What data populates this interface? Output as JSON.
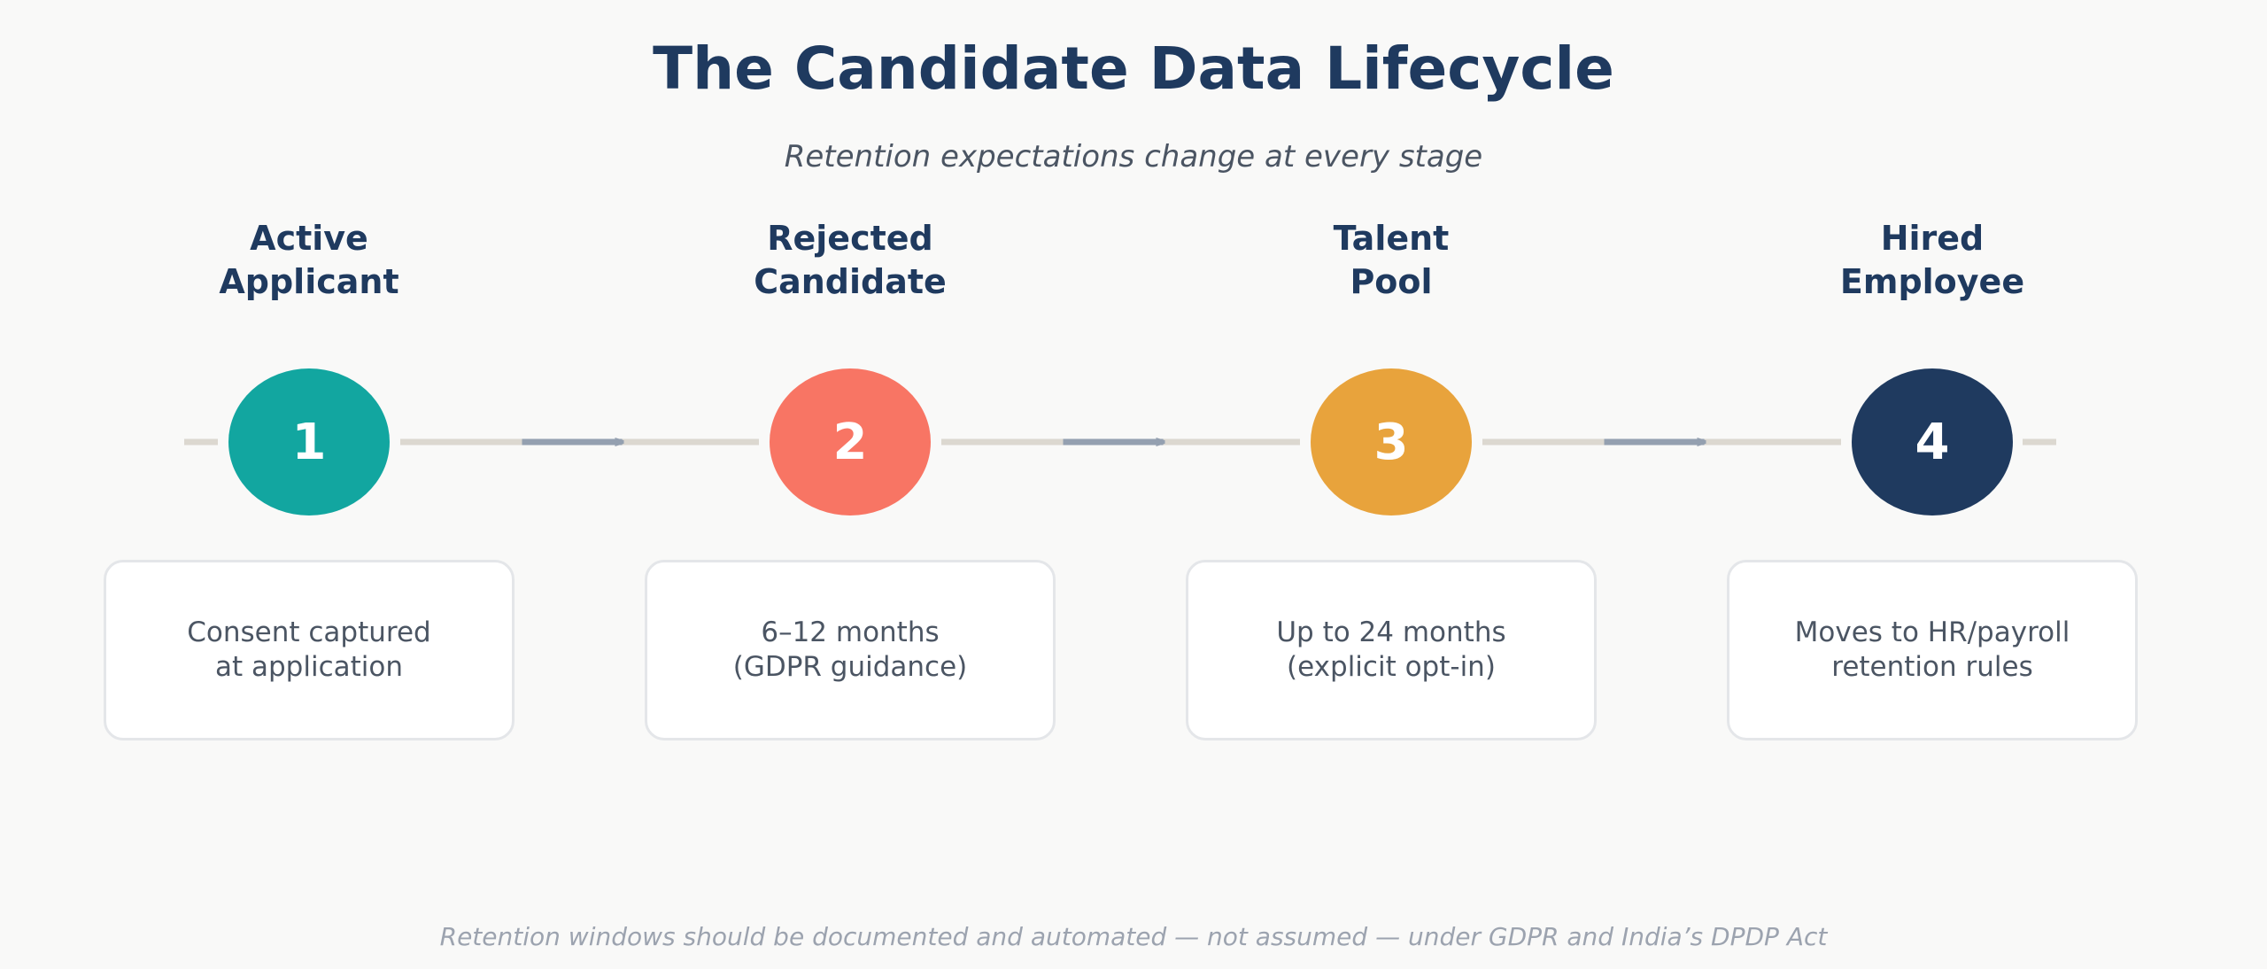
{
  "title": "The Candidate Data Lifecycle",
  "subtitle": "Retention expectations change at every stage",
  "stages": [
    {
      "number": "1",
      "label_line1": "Active",
      "label_line2": "Applicant",
      "desc_line1": "Consent captured",
      "desc_line2": "at application",
      "color": "#12a6a0"
    },
    {
      "number": "2",
      "label_line1": "Rejected",
      "label_line2": "Candidate",
      "desc_line1": "6–12 months",
      "desc_line2": "(GDPR guidance)",
      "color": "#f87564"
    },
    {
      "number": "3",
      "label_line1": "Talent",
      "label_line2": "Pool",
      "desc_line1": "Up to 24 months",
      "desc_line2": "(explicit opt-in)",
      "color": "#e8a33c"
    },
    {
      "number": "4",
      "label_line1": "Hired",
      "label_line2": "Employee",
      "desc_line1": "Moves to HR/payroll",
      "desc_line2": "retention rules",
      "color": "#1f3a5f"
    }
  ],
  "colors": {
    "track": "#dcd8d0",
    "arrow": "#94a0b0",
    "title": "#1f3a5f"
  },
  "footer": "Retention windows should be documented and automated — not assumed — under GDPR and India’s DPDP Act"
}
